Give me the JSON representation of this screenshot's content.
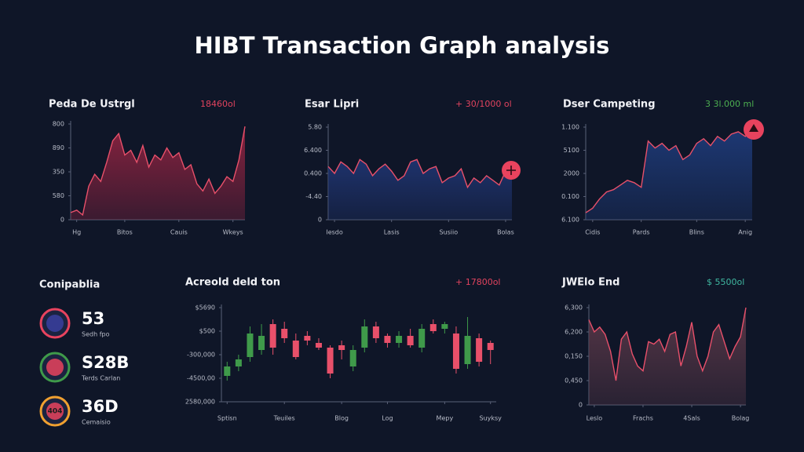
{
  "title": "HIBT Transaction Graph analysis",
  "chart_data": [
    {
      "type": "area",
      "title": "Peda De Ustrgl",
      "annotation": "18460ol",
      "annotation_color": "#e0435e",
      "color": "#e8506a",
      "fill": "#8c2340",
      "x": [
        0,
        1,
        2,
        3,
        4,
        5,
        6,
        7,
        8,
        9,
        10,
        11,
        12,
        13,
        14,
        15,
        16,
        17,
        18,
        19,
        20,
        21,
        22,
        23,
        24,
        25,
        26,
        27,
        28,
        29
      ],
      "values": [
        0.3,
        0.4,
        0.2,
        1.4,
        1.9,
        1.6,
        2.4,
        3.3,
        3.6,
        2.7,
        2.9,
        2.4,
        3.1,
        2.2,
        2.7,
        2.5,
        3.0,
        2.6,
        2.8,
        2.1,
        2.3,
        1.5,
        1.2,
        1.7,
        1.1,
        1.4,
        1.8,
        1.6,
        2.5,
        3.9
      ],
      "xlim": [
        0,
        29
      ],
      "ylim": [
        0,
        4
      ],
      "xticks": [
        {
          "value": 1,
          "label": "Hg"
        },
        {
          "value": 9,
          "label": "Bitos"
        },
        {
          "value": 18,
          "label": "Cauis"
        },
        {
          "value": 27,
          "label": "Wkeys"
        }
      ],
      "yticks": [
        0,
        {
          "value": 1,
          "label": "580"
        },
        {
          "value": 2,
          "label": "350"
        },
        {
          "value": 3,
          "label": "890"
        },
        {
          "value": 4,
          "label": "800"
        }
      ]
    },
    {
      "type": "area",
      "title": "Esar Lipri",
      "annotation": "+ 30/1000 ol",
      "annotation_color": "#e0435e",
      "color": "#e8506a",
      "fill": "#1f3470",
      "x": [
        0,
        1,
        2,
        3,
        4,
        5,
        6,
        7,
        8,
        9,
        10,
        11,
        12,
        13,
        14,
        15,
        16,
        17,
        18,
        19,
        20,
        21,
        22,
        23,
        24,
        25,
        26,
        27,
        28,
        29
      ],
      "values": [
        2.3,
        2.0,
        2.5,
        2.3,
        2.0,
        2.6,
        2.4,
        1.9,
        2.2,
        2.4,
        2.1,
        1.7,
        1.9,
        2.5,
        2.6,
        2.0,
        2.2,
        2.3,
        1.6,
        1.8,
        1.9,
        2.2,
        1.4,
        1.8,
        1.6,
        1.9,
        1.7,
        1.5,
        2.1,
        2.0
      ],
      "xlim": [
        0,
        29
      ],
      "ylim": [
        0,
        4
      ],
      "xticks": [
        {
          "value": 1,
          "label": "Iesdo"
        },
        {
          "value": 10,
          "label": "Lasis"
        },
        {
          "value": 19,
          "label": "Susiio"
        },
        {
          "value": 28,
          "label": "Bolas"
        }
      ],
      "yticks": [
        0,
        {
          "value": 1,
          "label": "-4.40"
        },
        {
          "value": 2,
          "label": "0.400"
        },
        {
          "value": 3,
          "label": "6.400"
        },
        {
          "value": 4,
          "label": "5.80"
        }
      ]
    },
    {
      "type": "area",
      "title": "Dser Campeting",
      "annotation": "3 3l.000 ml",
      "annotation_color": "#4caf50",
      "color": "#e8506a",
      "fill": "#1e3a78",
      "x": [
        0,
        1,
        2,
        3,
        4,
        5,
        6,
        7,
        8,
        9,
        10,
        11,
        12,
        13,
        14,
        15,
        16,
        17,
        18,
        19,
        20,
        21,
        22,
        23,
        24
      ],
      "values": [
        0.3,
        0.5,
        0.9,
        1.2,
        1.3,
        1.5,
        1.7,
        1.6,
        1.4,
        3.4,
        3.1,
        3.3,
        3.0,
        3.2,
        2.6,
        2.8,
        3.3,
        3.5,
        3.2,
        3.6,
        3.4,
        3.7,
        3.8,
        3.6,
        3.9
      ],
      "xlim": [
        0,
        24
      ],
      "ylim": [
        0,
        4
      ],
      "xticks": [
        {
          "value": 1,
          "label": "Cidis"
        },
        {
          "value": 8,
          "label": "Pards"
        },
        {
          "value": 16,
          "label": "Blins"
        },
        {
          "value": 23,
          "label": "Anig"
        }
      ],
      "yticks": [
        {
          "value": 0,
          "label": "6.100"
        },
        {
          "value": 1,
          "label": "0.100"
        },
        {
          "value": 2,
          "label": "2000"
        },
        {
          "value": 3,
          "label": "5100"
        },
        {
          "value": 4,
          "label": "1.100"
        }
      ]
    },
    {
      "type": "candlestick",
      "title": "Acreold deld ton",
      "annotation": "+ 17800ol",
      "annotation_color": "#e0435e",
      "up_color": "#3f9a4a",
      "down_color": "#e8506a",
      "x": [
        0,
        1,
        2,
        3,
        4,
        5,
        6,
        7,
        8,
        9,
        10,
        11,
        12,
        13,
        14,
        15,
        16,
        17,
        18,
        19,
        20,
        21,
        22,
        23
      ],
      "open": [
        1.1,
        1.5,
        1.9,
        2.2,
        3.3,
        3.1,
        2.6,
        2.8,
        2.5,
        2.3,
        2.4,
        1.5,
        2.3,
        3.2,
        2.8,
        2.5,
        2.8,
        2.3,
        3.3,
        3.1,
        2.9,
        1.6,
        2.7,
        2.5
      ],
      "close": [
        1.5,
        1.8,
        2.9,
        2.8,
        2.3,
        2.7,
        1.9,
        2.6,
        2.3,
        1.2,
        2.2,
        2.2,
        3.2,
        2.7,
        2.5,
        2.8,
        2.4,
        3.1,
        3.0,
        3.3,
        1.4,
        2.8,
        1.7,
        2.2
      ],
      "high": [
        1.7,
        2.0,
        3.2,
        3.3,
        3.5,
        3.4,
        2.9,
        3.0,
        2.7,
        2.4,
        2.6,
        2.4,
        3.5,
        3.4,
        2.9,
        3.0,
        3.1,
        3.3,
        3.5,
        3.4,
        3.2,
        3.6,
        2.9,
        2.6
      ],
      "low": [
        0.9,
        1.3,
        1.7,
        2.0,
        2.0,
        2.5,
        1.8,
        2.4,
        2.2,
        1.0,
        1.8,
        1.3,
        2.1,
        2.5,
        2.3,
        2.3,
        2.3,
        2.1,
        2.9,
        2.9,
        1.2,
        1.4,
        1.5,
        1.6
      ],
      "xlim": [
        -0.5,
        23.5
      ],
      "ylim": [
        0,
        4
      ],
      "xticks": [
        {
          "value": 0,
          "label": "Sptisn"
        },
        {
          "value": 5,
          "label": "Teuiles"
        },
        {
          "value": 10,
          "label": "Blog"
        },
        {
          "value": 14,
          "label": "Log"
        },
        {
          "value": 19,
          "label": "Mepy"
        },
        {
          "value": 23,
          "label": "Suyksy"
        }
      ],
      "yticks": [
        {
          "value": 0,
          "label": "2580,000"
        },
        {
          "value": 1,
          "label": "-4500,00"
        },
        {
          "value": 2,
          "label": "-300,000"
        },
        {
          "value": 3,
          "label": "$500"
        },
        {
          "value": 4,
          "label": "$5690"
        }
      ]
    },
    {
      "type": "area",
      "title": "JWElo End",
      "annotation": "$ 5500ol",
      "annotation_color": "#3fb7a0",
      "color": "#e8506a",
      "fill": "#5a3848",
      "x": [
        0,
        1,
        2,
        3,
        4,
        5,
        6,
        7,
        8,
        9,
        10,
        11,
        12,
        13,
        14,
        15,
        16,
        17,
        18,
        19,
        20,
        21,
        22,
        23,
        24,
        25,
        26,
        27,
        28,
        29
      ],
      "values": [
        3.5,
        3.0,
        3.2,
        2.9,
        2.2,
        1.0,
        2.7,
        3.0,
        2.1,
        1.6,
        1.4,
        2.6,
        2.5,
        2.7,
        2.2,
        2.9,
        3.0,
        1.6,
        2.4,
        3.4,
        2.0,
        1.4,
        2.0,
        3.0,
        3.3,
        2.6,
        1.9,
        2.4,
        2.8,
        4.0
      ],
      "xlim": [
        0,
        29
      ],
      "ylim": [
        0,
        4
      ],
      "xticks": [
        {
          "value": 1,
          "label": "Leslo"
        },
        {
          "value": 10,
          "label": "Frachs"
        },
        {
          "value": 19,
          "label": "4Sals"
        },
        {
          "value": 28,
          "label": "Bolag"
        }
      ],
      "yticks": [
        0,
        {
          "value": 1,
          "label": "0,450"
        },
        {
          "value": 2,
          "label": "0,150"
        },
        {
          "value": 3,
          "label": "6,200"
        },
        {
          "value": 4,
          "label": "6,300"
        }
      ]
    }
  ],
  "stats": {
    "title": "Conipablia",
    "items": [
      {
        "value": "53",
        "label": "Sedh fpo"
      },
      {
        "value": "S28B",
        "label": "Terds Carlan"
      },
      {
        "value": "36D",
        "label": "Cemaisio",
        "badge": "404"
      }
    ]
  }
}
